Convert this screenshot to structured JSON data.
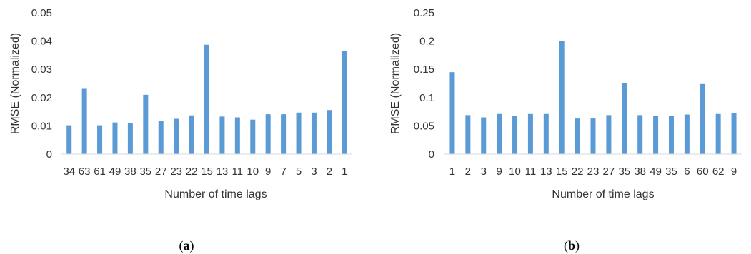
{
  "chart_data": [
    {
      "type": "bar",
      "panel_label": "a",
      "categories": [
        "34",
        "63",
        "61",
        "49",
        "38",
        "35",
        "27",
        "23",
        "22",
        "15",
        "13",
        "11",
        "10",
        "9",
        "7",
        "5",
        "3",
        "2",
        "1"
      ],
      "values": [
        0.0102,
        0.0231,
        0.0102,
        0.0112,
        0.011,
        0.021,
        0.0118,
        0.0125,
        0.0137,
        0.0387,
        0.0133,
        0.013,
        0.0122,
        0.0141,
        0.0141,
        0.0147,
        0.0147,
        0.0156,
        0.0366
      ],
      "xlabel": "Number of time lags",
      "ylabel": "RMSE (Normalized)",
      "ylim": [
        0,
        0.05
      ],
      "yticks": [
        "0",
        "0.01",
        "0.02",
        "0.03",
        "0.04",
        "0.05"
      ],
      "grid": false,
      "color": "#5b9bd5"
    },
    {
      "type": "bar",
      "panel_label": "b",
      "categories": [
        "1",
        "2",
        "3",
        "9",
        "10",
        "11",
        "13",
        "15",
        "22",
        "23",
        "27",
        "35",
        "38",
        "49",
        "35",
        "6",
        "60",
        "62",
        "9"
      ],
      "values": [
        0.145,
        0.069,
        0.065,
        0.071,
        0.067,
        0.071,
        0.071,
        0.2,
        0.063,
        0.063,
        0.069,
        0.125,
        0.069,
        0.068,
        0.067,
        0.07,
        0.124,
        0.071,
        0.073
      ],
      "xlabel": "Number of time lags",
      "ylabel": "RMSE (Normalized)",
      "ylim": [
        0,
        0.25
      ],
      "yticks": [
        "0",
        "0.05",
        "0.1",
        "0.15",
        "0.2",
        "0.25"
      ],
      "grid": false,
      "color": "#5b9bd5"
    }
  ]
}
